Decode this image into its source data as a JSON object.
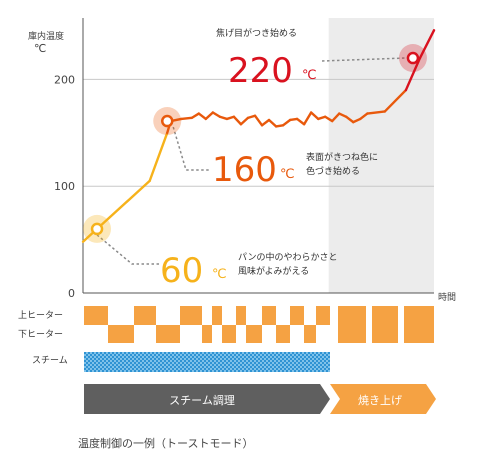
{
  "chart_data": {
    "type": "line",
    "title": "",
    "ylabel_line1": "庫内温度",
    "ylabel_line2": "℃",
    "xlabel": "時間",
    "y_ticks": [
      0,
      100,
      200
    ],
    "ylim": [
      0,
      250
    ],
    "xlim": [
      0,
      100
    ],
    "grid": true,
    "series": [
      {
        "x": [
          0,
          4,
          19,
          24,
          25,
          28,
          31,
          33,
          35,
          37,
          39,
          41,
          43,
          45,
          47,
          49,
          51,
          53,
          55,
          57,
          59,
          61,
          63,
          65,
          67,
          69,
          71,
          73,
          75,
          77,
          79,
          81,
          86,
          92,
          96,
          100
        ],
        "y": [
          48,
          60,
          105,
          150,
          161,
          163,
          164,
          168,
          163,
          169,
          165,
          163,
          165,
          158,
          164,
          166,
          157,
          162,
          156,
          157,
          162,
          163,
          158,
          169,
          163,
          165,
          161,
          168,
          165,
          160,
          163,
          168,
          170,
          190,
          220,
          246
        ]
      }
    ],
    "annotations": [
      {
        "x": 4,
        "y": 60,
        "value_label": "60",
        "unit": "℃",
        "text_line1": "パンの中のやわらかさと",
        "text_line2": "風味がよみがえる"
      },
      {
        "x": 24,
        "y": 161,
        "value_label": "160",
        "unit": "℃",
        "text_line1": "表面がきつね色に",
        "text_line2": "色づき始める"
      },
      {
        "x": 94,
        "y": 220,
        "value_label": "220",
        "unit": "℃",
        "text_line1": "焦げ目がつき始める",
        "text_line2": ""
      }
    ],
    "heater_rows": {
      "upper_label": "上ヒーター",
      "lower_label": "下ヒーター",
      "steam_label": "スチーム"
    },
    "phases": [
      {
        "label": "スチーム調理",
        "from": 0,
        "to": 70,
        "color": "#5f5f5f"
      },
      {
        "label": "焼き上げ",
        "from": 70,
        "to": 100,
        "color": "#f5a243"
      }
    ]
  },
  "caption": "温度制御の一例（トーストモード）",
  "colors": {
    "line_early": "#f6b21b",
    "line_mid": "#e8590c",
    "line_late": "#d9121f",
    "label_60": "#f6b21b",
    "label_160": "#e8590c",
    "label_220": "#d9121f",
    "heater": "#f5a243",
    "steam": "#4aa8dd",
    "phase_shade": "#ececec",
    "grid": "#c8c8c8"
  }
}
